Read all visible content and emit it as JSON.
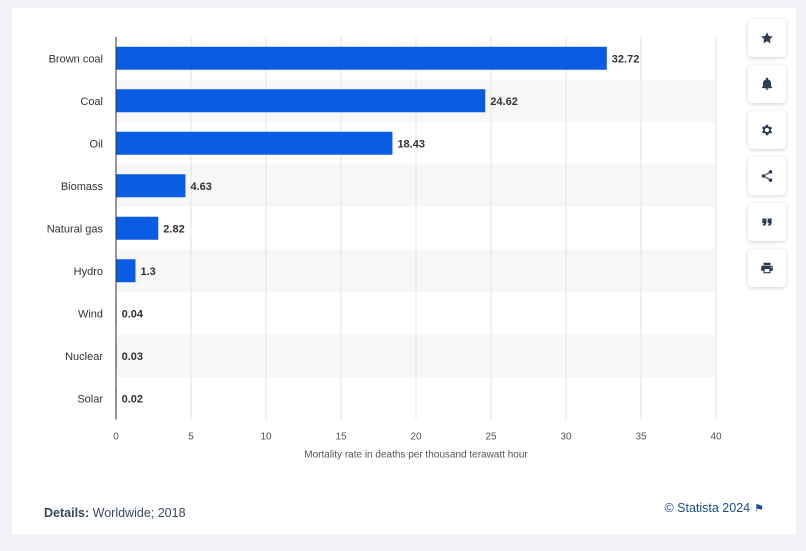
{
  "chart_data": {
    "type": "bar",
    "orientation": "horizontal",
    "categories": [
      "Brown coal",
      "Coal",
      "Oil",
      "Biomass",
      "Natural gas",
      "Hydro",
      "Wind",
      "Nuclear",
      "Solar"
    ],
    "values": [
      32.72,
      24.62,
      18.43,
      4.63,
      2.82,
      1.3,
      0.04,
      0.03,
      0.02
    ],
    "value_labels": [
      "32.72",
      "24.62",
      "18.43",
      "4.63",
      "2.82",
      "1.3",
      "0.04",
      "0.03",
      "0.02"
    ],
    "xlabel": "Mortality rate in deaths per thousand terawatt hour",
    "xlim": [
      0,
      40
    ],
    "xticks": [
      "0",
      "5",
      "10",
      "15",
      "20",
      "25",
      "30",
      "35",
      "40"
    ],
    "tick_values": [
      0,
      5,
      10,
      15,
      20,
      25,
      30,
      35,
      40
    ],
    "bar_color": "#0b5ce5",
    "grid": true
  },
  "footer": {
    "details_label": "Details:",
    "details_value": "Worldwide; 2018",
    "copyright": "© Statista 2024"
  },
  "sidebar": {
    "icons": [
      "star-icon",
      "bell-icon",
      "gear-icon",
      "share-icon",
      "quote-icon",
      "print-icon"
    ]
  }
}
